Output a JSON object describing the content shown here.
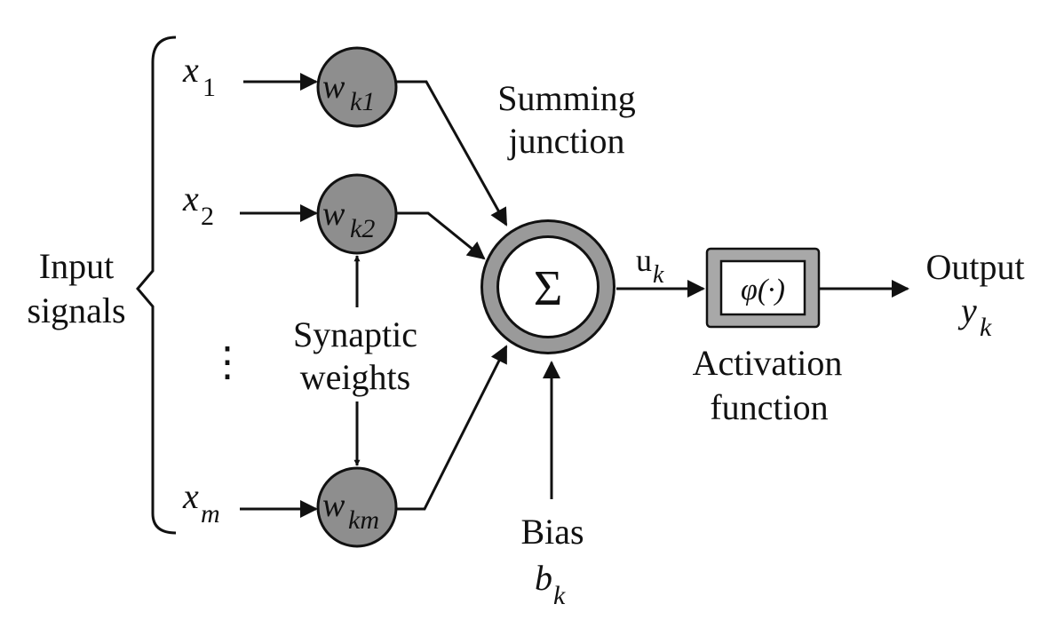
{
  "diagram": {
    "inputs": {
      "group_label_line1": "Input",
      "group_label_line2": "signals",
      "x1": {
        "base": "x",
        "sub": "1"
      },
      "x2": {
        "base": "x",
        "sub": "2"
      },
      "xm": {
        "base": "x",
        "sub": "m"
      },
      "ellipsis": "⋮"
    },
    "weights": {
      "wk1": {
        "base": "w",
        "sub": "k1"
      },
      "wk2": {
        "base": "w",
        "sub": "k2"
      },
      "wkm": {
        "base": "w",
        "sub": "km"
      },
      "label_line1": "Synaptic",
      "label_line2": "weights"
    },
    "summing": {
      "label_line1": "Summing",
      "label_line2": "junction",
      "symbol": "Σ"
    },
    "signal_u": {
      "base": "u",
      "sub": "k"
    },
    "bias": {
      "label": "Bias",
      "base": "b",
      "sub": "k"
    },
    "activation": {
      "symbol": "φ(·)",
      "label_line1": "Activation",
      "label_line2": "function"
    },
    "output": {
      "label": "Output",
      "base": "y",
      "sub": "k"
    },
    "colors": {
      "weight_fill": "#8e8e8e",
      "ring": "#9a9a9a",
      "box_outer": "#a8a8a8",
      "box_inner": "#ffffff",
      "line": "#111111"
    }
  }
}
